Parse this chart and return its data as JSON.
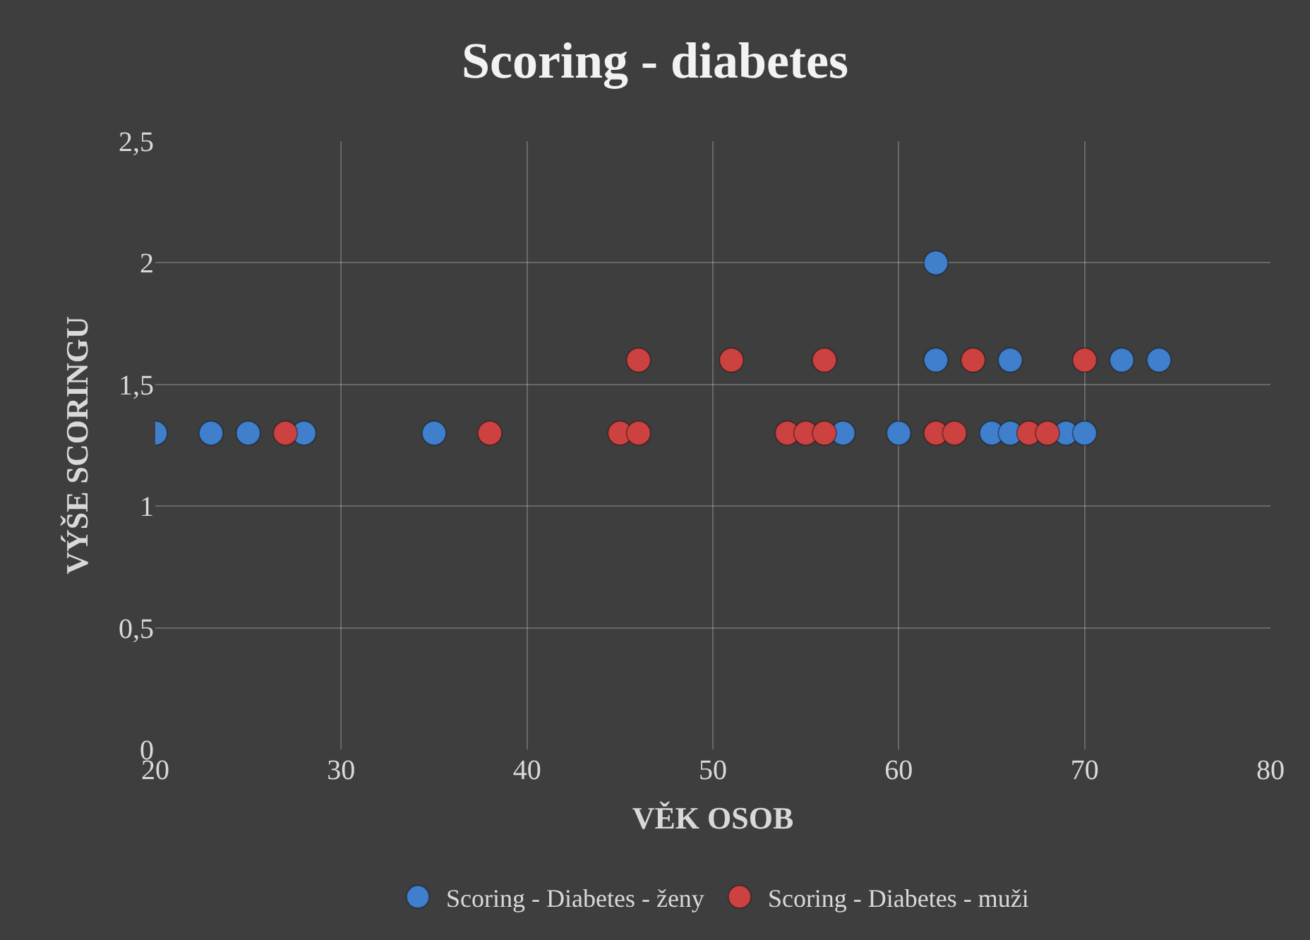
{
  "chart_data": {
    "type": "scatter",
    "title": "Scoring - diabetes",
    "xlabel": "VĚK OSOB",
    "ylabel": "VÝŠE SCORINGU",
    "xlim": [
      20,
      80
    ],
    "xticks": [
      20,
      30,
      40,
      50,
      60,
      70,
      80
    ],
    "ylim": [
      0,
      2.5
    ],
    "yticks": [
      {
        "value": 0,
        "label": "0"
      },
      {
        "value": 0.5,
        "label": "0,5"
      },
      {
        "value": 1,
        "label": "1"
      },
      {
        "value": 1.5,
        "label": "1,5"
      },
      {
        "value": 2,
        "label": "2"
      },
      {
        "value": 2.5,
        "label": "2,5"
      }
    ],
    "grid": true,
    "legend": "bottom",
    "marker": "circle",
    "series": [
      {
        "name": "Scoring - Diabetes - ženy",
        "color": "#3f7fcc",
        "x": [
          20,
          23,
          25,
          28,
          35,
          57,
          60,
          65,
          66,
          69,
          70,
          62,
          66,
          72,
          74,
          62
        ],
        "values": [
          1.3,
          1.3,
          1.3,
          1.3,
          1.3,
          1.3,
          1.3,
          1.3,
          1.3,
          1.3,
          1.3,
          1.6,
          1.6,
          1.6,
          1.6,
          2
        ]
      },
      {
        "name": "Scoring - Diabetes - muži",
        "color": "#cc4240",
        "x": [
          27,
          38,
          45,
          46,
          54,
          55,
          56,
          62,
          63,
          67,
          68,
          46,
          51,
          56,
          64,
          70
        ],
        "values": [
          1.3,
          1.3,
          1.3,
          1.3,
          1.3,
          1.3,
          1.3,
          1.3,
          1.3,
          1.3,
          1.3,
          1.6,
          1.6,
          1.6,
          1.6,
          1.6
        ]
      }
    ]
  }
}
